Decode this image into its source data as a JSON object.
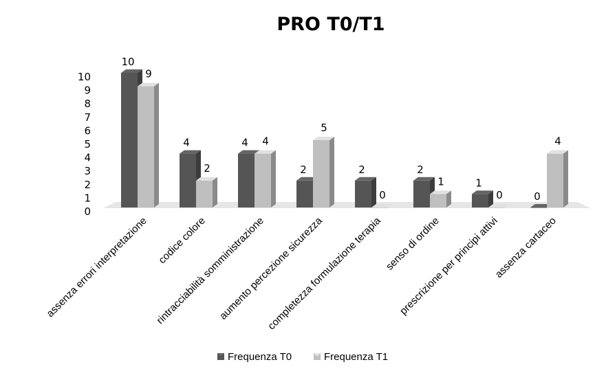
{
  "chart_data": {
    "type": "bar",
    "title": "PRO T0/T1",
    "xlabel": "",
    "ylabel": "",
    "ylim": [
      0,
      10
    ],
    "yticks": [
      0,
      1,
      2,
      3,
      4,
      5,
      6,
      7,
      8,
      9,
      10
    ],
    "grid": false,
    "legend_position": "bottom",
    "style": "3d-clustered-column",
    "categories": [
      "assenza errori interpretazione",
      "codice colore",
      "rintracciabilità somministrazione",
      "aumento percezione sicurezza",
      "completezza formulazione terapia",
      "senso di ordine",
      "prescrizione per principi attivi",
      "assenza cartaceo"
    ],
    "series": [
      {
        "name": "Frequenza T0",
        "values": [
          10,
          4,
          4,
          2,
          2,
          2,
          1,
          0
        ],
        "color": "#555555"
      },
      {
        "name": "Frequenza T1",
        "values": [
          9,
          2,
          4,
          5,
          0,
          1,
          0,
          4
        ],
        "color": "#bfbfbf"
      }
    ]
  }
}
